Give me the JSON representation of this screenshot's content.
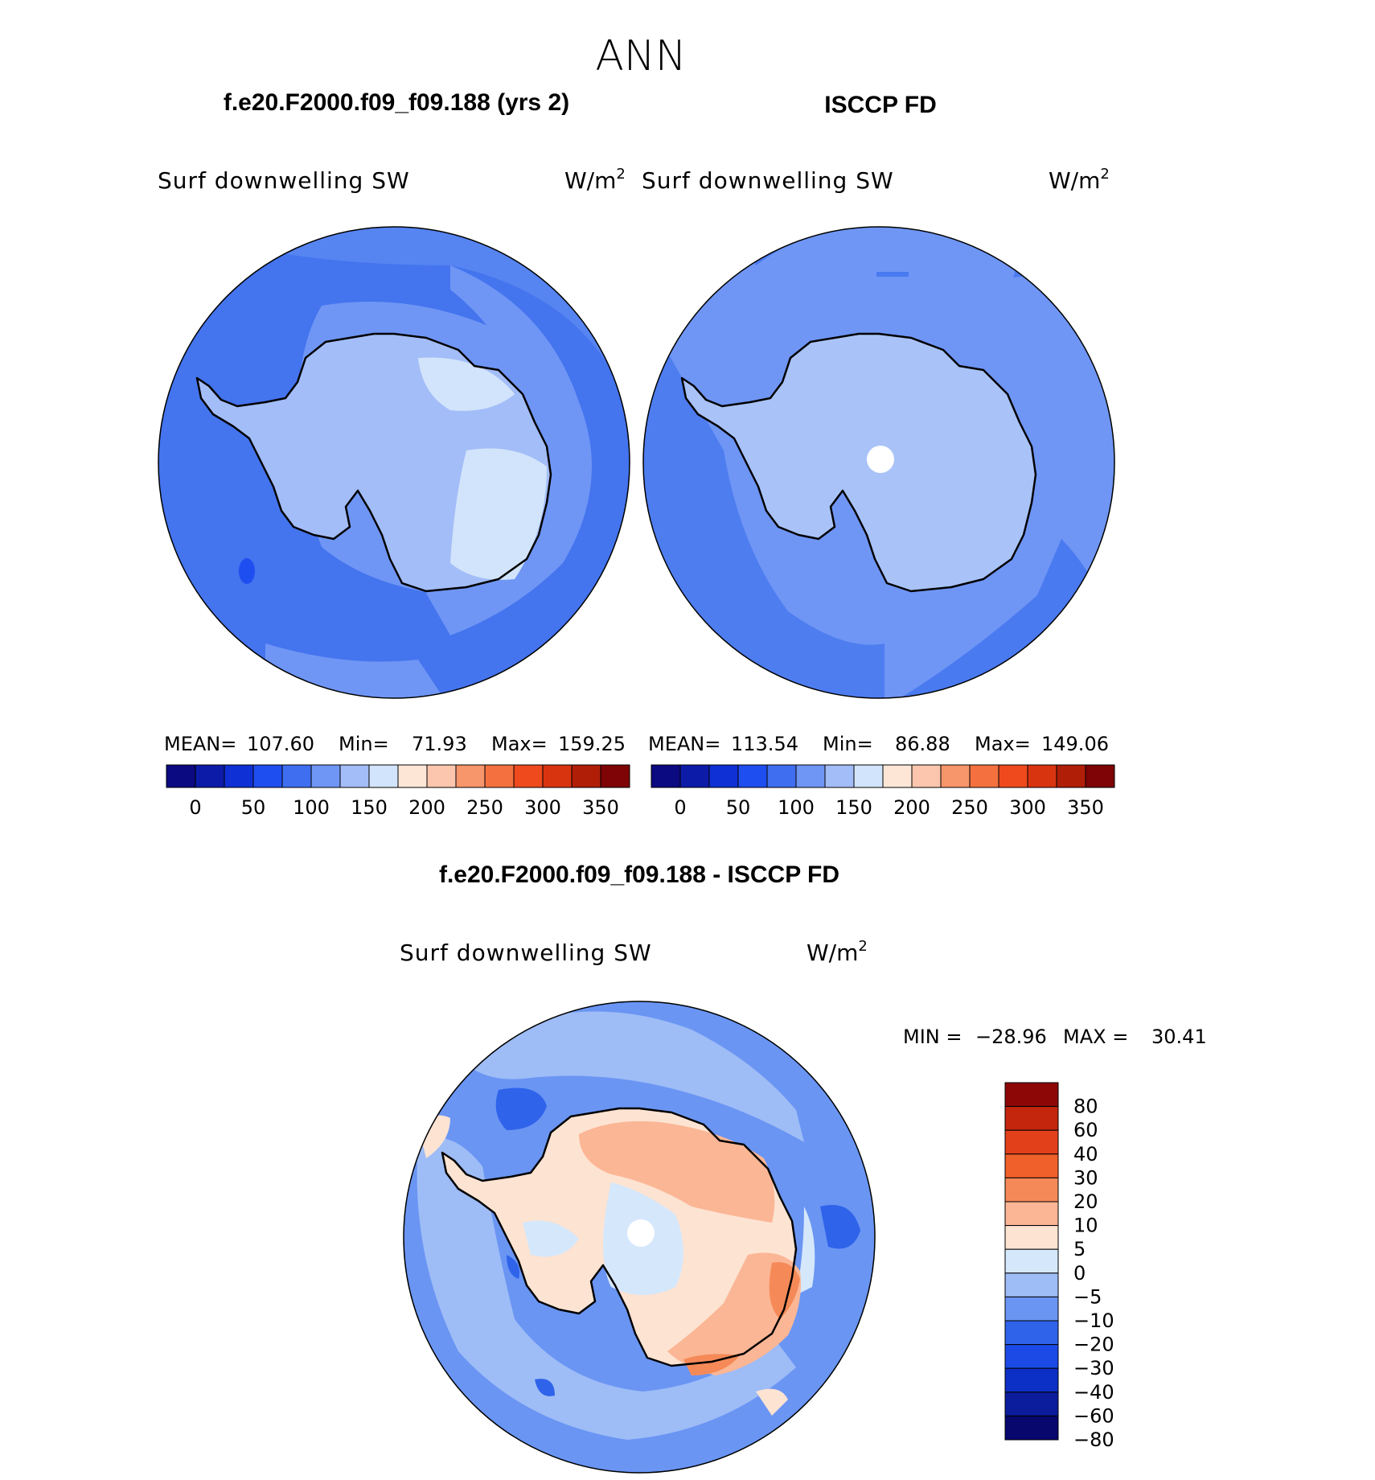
{
  "page_title": "ANN",
  "colors": {
    "abs_scale": [
      "#0b0a80",
      "#0c1ca8",
      "#0f30d4",
      "#1f4ef0",
      "#3f6ef0",
      "#6f96f5",
      "#a3bdf8",
      "#d2e4fb",
      "#fde6d6",
      "#fbc6ad",
      "#f7956b",
      "#f4713f",
      "#ee4a1e",
      "#d93410",
      "#b01e08",
      "#7e0405"
    ],
    "diff_scale": [
      "#07076e",
      "#0b1c9c",
      "#0c2fc6",
      "#1b4ae6",
      "#2f63ea",
      "#6a95f3",
      "#9ebcf6",
      "#d5e7fb",
      "#fde3d2",
      "#fbb695",
      "#f58a58",
      "#f0602a",
      "#e2401b",
      "#c3260c",
      "#8e0707"
    ],
    "coastline": "#000000",
    "pole_hole": "#ffffff"
  },
  "panels": [
    {
      "title": "f.e20.F2000.f09_f09.188 (yrs 2)",
      "variable": "Surf downwelling SW",
      "units_base": "W/m",
      "units_exp": "2",
      "stats": {
        "mean_label": "MEAN=",
        "mean": "107.60",
        "min_label": "Min=",
        "min": "71.93",
        "max_label": "Max=",
        "max": "159.25"
      },
      "colorbar_ticks": [
        "0",
        "50",
        "100",
        "150",
        "200",
        "250",
        "300",
        "350"
      ]
    },
    {
      "title": "ISCCP FD",
      "variable": "Surf downwelling SW",
      "units_base": "W/m",
      "units_exp": "2",
      "stats": {
        "mean_label": "MEAN=",
        "mean": "113.54",
        "min_label": "Min=",
        "min": "86.88",
        "max_label": "Max=",
        "max": "149.06"
      },
      "colorbar_ticks": [
        "0",
        "50",
        "100",
        "150",
        "200",
        "250",
        "300",
        "350"
      ]
    }
  ],
  "diff_panel": {
    "title": "f.e20.F2000.f09_f09.188 - ISCCP FD",
    "variable": "Surf downwelling SW",
    "units_base": "W/m",
    "units_exp": "2",
    "min_label": "MIN =",
    "min": "−28.96",
    "max_label": "MAX =",
    "max": "30.41",
    "colorbar_ticks": [
      "80",
      "60",
      "40",
      "30",
      "20",
      "10",
      "5",
      "0",
      "−5",
      "−10",
      "−20",
      "−30",
      "−40",
      "−60",
      "−80"
    ]
  }
}
